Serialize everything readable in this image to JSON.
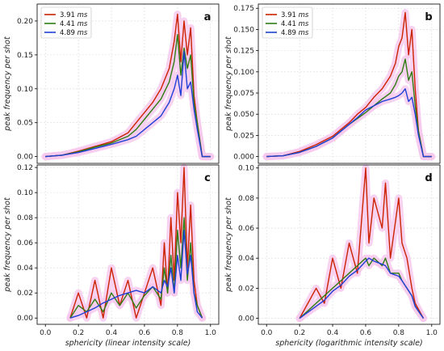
{
  "chart_data": [
    {
      "type": "line",
      "panel": "a",
      "xlabel": "",
      "ylabel": "peak frequency per shot",
      "xlim": [
        -0.05,
        1.05
      ],
      "ylim": [
        -0.01,
        0.225
      ],
      "xticks": [],
      "yticks": [
        "0.00",
        "0.05",
        "0.10",
        "0.15",
        "0.20"
      ],
      "ytick_values": [
        0,
        0.05,
        0.1,
        0.15,
        0.2
      ],
      "grid": true,
      "legend": "top-left",
      "shaded": true,
      "series": [
        {
          "name": "3.91 ms",
          "color": "#cc2200",
          "x": [
            0.0,
            0.1,
            0.2,
            0.3,
            0.4,
            0.5,
            0.55,
            0.6,
            0.65,
            0.7,
            0.75,
            0.78,
            0.8,
            0.82,
            0.84,
            0.86,
            0.88,
            0.9,
            0.92,
            0.95,
            1.0
          ],
          "y": [
            0.0,
            0.002,
            0.008,
            0.015,
            0.022,
            0.035,
            0.05,
            0.065,
            0.08,
            0.1,
            0.13,
            0.17,
            0.21,
            0.14,
            0.2,
            0.15,
            0.19,
            0.09,
            0.05,
            0.0,
            0.0
          ]
        },
        {
          "name": "4.41 ms",
          "color": "#2e7d12",
          "x": [
            0.0,
            0.1,
            0.2,
            0.3,
            0.4,
            0.5,
            0.55,
            0.6,
            0.65,
            0.7,
            0.75,
            0.78,
            0.8,
            0.82,
            0.84,
            0.86,
            0.88,
            0.9,
            0.92,
            0.95,
            1.0
          ],
          "y": [
            0.0,
            0.002,
            0.007,
            0.014,
            0.02,
            0.03,
            0.04,
            0.055,
            0.07,
            0.085,
            0.11,
            0.14,
            0.18,
            0.12,
            0.16,
            0.13,
            0.15,
            0.08,
            0.05,
            0.0,
            0.0
          ]
        },
        {
          "name": "4.89 ms",
          "color": "#1f3fd6",
          "x": [
            0.0,
            0.1,
            0.2,
            0.3,
            0.4,
            0.5,
            0.55,
            0.6,
            0.65,
            0.7,
            0.75,
            0.78,
            0.8,
            0.82,
            0.84,
            0.86,
            0.88,
            0.9,
            0.92,
            0.95,
            1.0
          ],
          "y": [
            0.0,
            0.002,
            0.006,
            0.012,
            0.018,
            0.025,
            0.03,
            0.04,
            0.05,
            0.06,
            0.08,
            0.1,
            0.12,
            0.09,
            0.155,
            0.1,
            0.11,
            0.07,
            0.04,
            0.0,
            0.0
          ]
        }
      ]
    },
    {
      "type": "line",
      "panel": "b",
      "xlabel": "",
      "ylabel": "peak frequency per shot",
      "xlim": [
        -0.05,
        1.05
      ],
      "ylim": [
        -0.008,
        0.18
      ],
      "xticks": [],
      "yticks": [
        "0.000",
        "0.025",
        "0.050",
        "0.075",
        "0.100",
        "0.125",
        "0.150",
        "0.175"
      ],
      "ytick_values": [
        0,
        0.025,
        0.05,
        0.075,
        0.1,
        0.125,
        0.15,
        0.175
      ],
      "grid": true,
      "legend": "top-left",
      "shaded": true,
      "series": [
        {
          "name": "3.91 ms",
          "color": "#cc2200",
          "x": [
            0.0,
            0.1,
            0.2,
            0.3,
            0.4,
            0.5,
            0.55,
            0.6,
            0.65,
            0.7,
            0.75,
            0.78,
            0.8,
            0.82,
            0.84,
            0.86,
            0.88,
            0.9,
            0.92,
            0.95,
            1.0
          ],
          "y": [
            0.0,
            0.001,
            0.006,
            0.014,
            0.024,
            0.04,
            0.05,
            0.058,
            0.07,
            0.08,
            0.095,
            0.11,
            0.13,
            0.14,
            0.17,
            0.12,
            0.15,
            0.08,
            0.03,
            0.0,
            0.0
          ]
        },
        {
          "name": "4.41 ms",
          "color": "#2e7d12",
          "x": [
            0.0,
            0.1,
            0.2,
            0.3,
            0.4,
            0.5,
            0.55,
            0.6,
            0.65,
            0.7,
            0.75,
            0.78,
            0.8,
            0.82,
            0.84,
            0.86,
            0.88,
            0.9,
            0.92,
            0.95,
            1.0
          ],
          "y": [
            0.0,
            0.001,
            0.005,
            0.012,
            0.022,
            0.038,
            0.045,
            0.052,
            0.06,
            0.068,
            0.075,
            0.085,
            0.095,
            0.1,
            0.115,
            0.09,
            0.1,
            0.06,
            0.03,
            0.0,
            0.0
          ]
        },
        {
          "name": "4.89 ms",
          "color": "#1f3fd6",
          "x": [
            0.0,
            0.1,
            0.2,
            0.3,
            0.4,
            0.5,
            0.55,
            0.6,
            0.65,
            0.7,
            0.75,
            0.78,
            0.8,
            0.82,
            0.84,
            0.86,
            0.88,
            0.9,
            0.92,
            0.95,
            1.0
          ],
          "y": [
            0.0,
            0.001,
            0.005,
            0.012,
            0.022,
            0.038,
            0.046,
            0.055,
            0.06,
            0.065,
            0.068,
            0.07,
            0.072,
            0.075,
            0.08,
            0.065,
            0.07,
            0.05,
            0.025,
            0.0,
            0.0
          ]
        }
      ]
    },
    {
      "type": "line",
      "panel": "c",
      "xlabel": "sphericity (linear intensity scale)",
      "ylabel": "peak frequency per shot",
      "xlim": [
        -0.05,
        1.05
      ],
      "ylim": [
        -0.005,
        0.122
      ],
      "xticks": [
        "0.0",
        "0.2",
        "0.4",
        "0.6",
        "0.8",
        "1.0"
      ],
      "xtick_values": [
        0,
        0.2,
        0.4,
        0.6,
        0.8,
        1.0
      ],
      "yticks": [
        "0.00",
        "0.02",
        "0.04",
        "0.06",
        "0.08",
        "0.10",
        "0.12"
      ],
      "ytick_values": [
        0,
        0.02,
        0.04,
        0.06,
        0.08,
        0.1,
        0.12
      ],
      "grid": true,
      "legend": "none",
      "shaded": true,
      "series": [
        {
          "name": "3.91 ms",
          "color": "#cc2200",
          "x": [
            0.15,
            0.2,
            0.25,
            0.3,
            0.35,
            0.4,
            0.45,
            0.5,
            0.55,
            0.6,
            0.65,
            0.7,
            0.72,
            0.74,
            0.76,
            0.78,
            0.8,
            0.82,
            0.84,
            0.86,
            0.88,
            0.9,
            0.92,
            0.95
          ],
          "y": [
            0.0,
            0.02,
            0.0,
            0.03,
            0.0,
            0.04,
            0.01,
            0.03,
            0.0,
            0.02,
            0.04,
            0.01,
            0.06,
            0.02,
            0.08,
            0.03,
            0.1,
            0.06,
            0.12,
            0.04,
            0.09,
            0.03,
            0.01,
            0.0
          ]
        },
        {
          "name": "4.41 ms",
          "color": "#2e7d12",
          "x": [
            0.15,
            0.2,
            0.25,
            0.3,
            0.35,
            0.4,
            0.45,
            0.5,
            0.55,
            0.6,
            0.65,
            0.7,
            0.72,
            0.74,
            0.76,
            0.78,
            0.8,
            0.82,
            0.84,
            0.86,
            0.88,
            0.9,
            0.92,
            0.95
          ],
          "y": [
            0.0,
            0.01,
            0.005,
            0.015,
            0.005,
            0.02,
            0.01,
            0.02,
            0.008,
            0.018,
            0.025,
            0.015,
            0.04,
            0.02,
            0.05,
            0.02,
            0.07,
            0.04,
            0.08,
            0.03,
            0.06,
            0.02,
            0.01,
            0.0
          ]
        },
        {
          "name": "4.89 ms",
          "color": "#1f3fd6",
          "x": [
            0.15,
            0.2,
            0.25,
            0.3,
            0.35,
            0.4,
            0.45,
            0.5,
            0.55,
            0.6,
            0.65,
            0.7,
            0.72,
            0.74,
            0.76,
            0.78,
            0.8,
            0.82,
            0.84,
            0.86,
            0.88,
            0.9,
            0.92,
            0.95
          ],
          "y": [
            0.0,
            0.002,
            0.005,
            0.008,
            0.012,
            0.015,
            0.018,
            0.02,
            0.022,
            0.02,
            0.025,
            0.02,
            0.03,
            0.025,
            0.04,
            0.02,
            0.05,
            0.03,
            0.07,
            0.035,
            0.05,
            0.02,
            0.005,
            0.0
          ]
        }
      ]
    },
    {
      "type": "line",
      "panel": "d",
      "xlabel": "sphericity (logarithmic intensity scale)",
      "ylabel": "peak frequency per shot",
      "xlim": [
        -0.05,
        1.05
      ],
      "ylim": [
        -0.004,
        0.102
      ],
      "xticks": [
        "0.0",
        "0.2",
        "0.4",
        "0.6",
        "0.8",
        "1.0"
      ],
      "xtick_values": [
        0,
        0.2,
        0.4,
        0.6,
        0.8,
        1.0
      ],
      "yticks": [
        "0.00",
        "0.02",
        "0.04",
        "0.06",
        "0.08",
        "0.10"
      ],
      "ytick_values": [
        0,
        0.02,
        0.04,
        0.06,
        0.08,
        0.1
      ],
      "grid": true,
      "legend": "none",
      "shaded": true,
      "series": [
        {
          "name": "3.91 ms",
          "color": "#cc2200",
          "x": [
            0.2,
            0.25,
            0.3,
            0.35,
            0.4,
            0.45,
            0.5,
            0.55,
            0.6,
            0.62,
            0.65,
            0.7,
            0.72,
            0.75,
            0.8,
            0.82,
            0.85,
            0.88,
            0.9,
            0.95
          ],
          "y": [
            0.0,
            0.01,
            0.02,
            0.01,
            0.04,
            0.02,
            0.05,
            0.03,
            0.1,
            0.05,
            0.08,
            0.06,
            0.09,
            0.04,
            0.08,
            0.05,
            0.04,
            0.02,
            0.01,
            0.0
          ]
        },
        {
          "name": "4.41 ms",
          "color": "#2e7d12",
          "x": [
            0.2,
            0.25,
            0.3,
            0.35,
            0.4,
            0.45,
            0.5,
            0.55,
            0.6,
            0.62,
            0.65,
            0.7,
            0.72,
            0.75,
            0.8,
            0.82,
            0.85,
            0.88,
            0.9,
            0.95
          ],
          "y": [
            0.0,
            0.005,
            0.01,
            0.015,
            0.02,
            0.025,
            0.03,
            0.035,
            0.04,
            0.035,
            0.04,
            0.035,
            0.04,
            0.03,
            0.03,
            0.025,
            0.02,
            0.015,
            0.008,
            0.0
          ]
        },
        {
          "name": "4.89 ms",
          "color": "#1f3fd6",
          "x": [
            0.2,
            0.25,
            0.3,
            0.35,
            0.4,
            0.45,
            0.5,
            0.55,
            0.6,
            0.62,
            0.65,
            0.7,
            0.72,
            0.75,
            0.8,
            0.82,
            0.85,
            0.88,
            0.9,
            0.95
          ],
          "y": [
            0.0,
            0.004,
            0.008,
            0.012,
            0.018,
            0.022,
            0.028,
            0.032,
            0.038,
            0.04,
            0.038,
            0.036,
            0.035,
            0.03,
            0.028,
            0.025,
            0.02,
            0.015,
            0.008,
            0.0
          ]
        }
      ]
    }
  ],
  "legend": {
    "entries": [
      {
        "label": "3.91",
        "unit": "ms",
        "color": "#cc2200"
      },
      {
        "label": "4.41",
        "unit": "ms",
        "color": "#2e7d12"
      },
      {
        "label": "4.89",
        "unit": "ms",
        "color": "#1f3fd6"
      }
    ]
  },
  "colors": {
    "shade": "#f6c8ee",
    "grid": "#d9d9d9"
  }
}
